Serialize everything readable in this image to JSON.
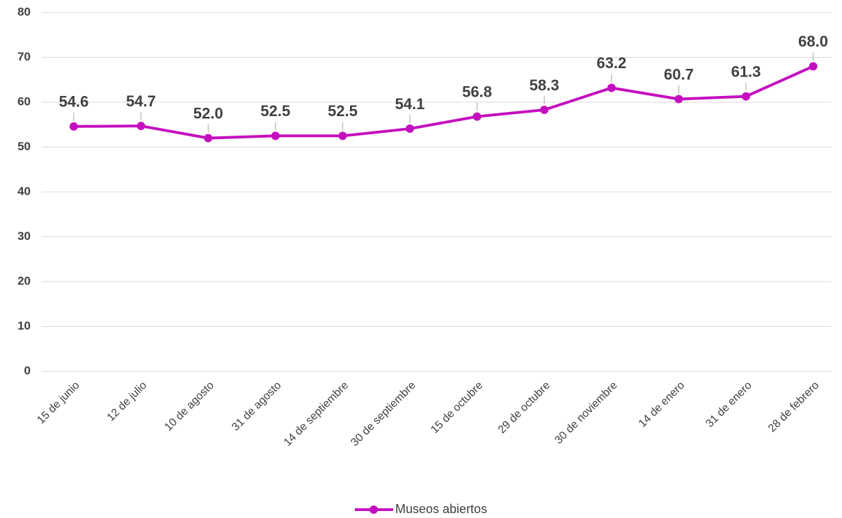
{
  "chart_data": {
    "type": "line",
    "categories": [
      "15 de junio",
      "12 de julio",
      "10 de agosto",
      "31 de agosto",
      "14 de septiembre",
      "30 de septiembre",
      "15 de octubre",
      "29 de octubre",
      "30 de noviembre",
      "14 de enero",
      "31 de enero",
      "28 de febrero"
    ],
    "series": [
      {
        "name": "Museos abiertos",
        "color": "#c40fbf",
        "values": [
          54.6,
          54.7,
          52.0,
          52.5,
          52.5,
          54.1,
          56.8,
          58.3,
          63.2,
          60.7,
          61.3,
          68.0
        ],
        "value_labels": [
          "54.6",
          "54.7",
          "52.0",
          "52.5",
          "52.5",
          "54.1",
          "56.8",
          "58.3",
          "63.2",
          "60.7",
          "61.3",
          "68.0"
        ]
      }
    ],
    "ylim": [
      0,
      80
    ],
    "yticks": [
      0,
      10,
      20,
      30,
      40,
      50,
      60,
      70,
      80
    ],
    "grid": true,
    "legend": "bottom"
  }
}
